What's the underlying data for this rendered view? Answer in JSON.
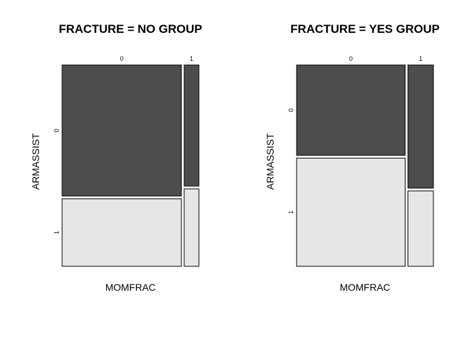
{
  "chart_data": [
    {
      "type": "mosaic",
      "title": "FRACTURE = NO GROUP",
      "xlabel": "MOMFRAC",
      "ylabel": "ARMASSIST",
      "x_categories": [
        "0",
        "1"
      ],
      "y_categories": [
        "0",
        "1"
      ],
      "x_proportions": [
        0.89,
        0.11
      ],
      "y_proportions_within_x": [
        [
          0.66,
          0.34
        ],
        [
          0.61,
          0.39
        ]
      ],
      "colors": {
        "0": "#4d4d4d",
        "1": "#e6e6e6"
      }
    },
    {
      "type": "mosaic",
      "title": "FRACTURE = YES GROUP",
      "xlabel": "MOMFRAC",
      "ylabel": "ARMASSIST",
      "x_categories": [
        "0",
        "1"
      ],
      "y_categories": [
        "0",
        "1"
      ],
      "x_proportions": [
        0.81,
        0.19
      ],
      "y_proportions_within_x": [
        [
          0.455,
          0.545
        ],
        [
          0.62,
          0.38
        ]
      ],
      "colors": {
        "0": "#4d4d4d",
        "1": "#e6e6e6"
      }
    }
  ]
}
